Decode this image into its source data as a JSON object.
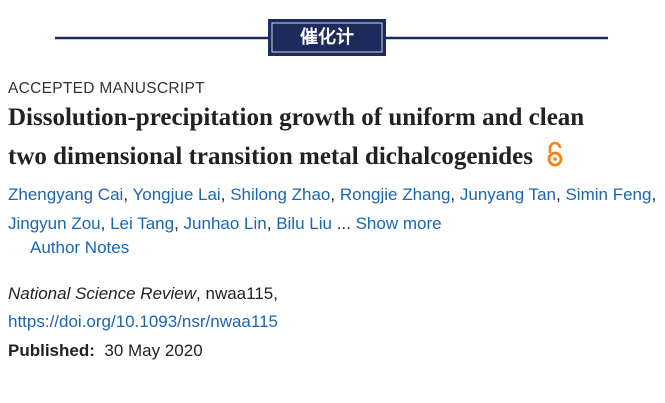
{
  "banner": {
    "label": "催化计"
  },
  "status": "ACCEPTED MANUSCRIPT",
  "title": [
    "Dissolution-precipitation growth of uniform and clean",
    "two dimensional transition metal dichalcogenides"
  ],
  "authors": [
    "Zhengyang Cai",
    "Yongjue Lai",
    "Shilong Zhao",
    "Rongjie Zhang",
    "Junyang Tan",
    "Simin Feng",
    "Jingyun Zou",
    "Lei Tang",
    "Junhao Lin",
    "Bilu Liu"
  ],
  "author_separator": ",",
  "ellipsis": "...",
  "show_more": "Show more",
  "author_notes": "Author Notes",
  "journal": "National Science Review",
  "article_id": ", nwaa115,",
  "doi": "https://doi.org/10.1093/nsr/nwaa115",
  "published_label": "Published:",
  "published_date": "30 May 2020"
}
